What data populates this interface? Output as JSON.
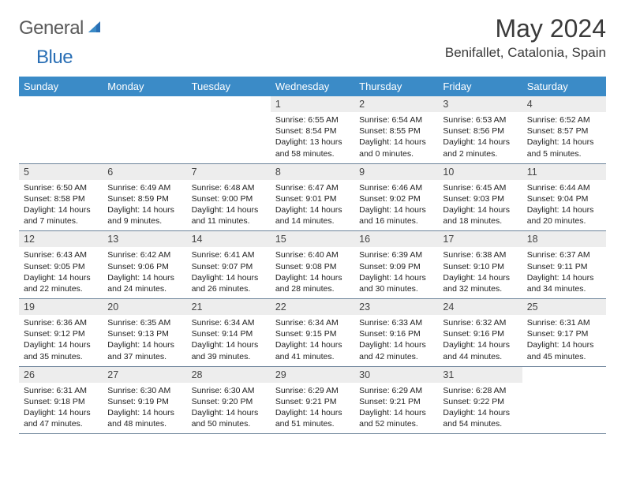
{
  "logo": {
    "general": "General",
    "blue": "Blue"
  },
  "title": "May 2024",
  "location": "Benifallet, Catalonia, Spain",
  "colors": {
    "header_bg": "#3b8bc7",
    "header_text": "#ffffff",
    "daynum_bg": "#ededed",
    "row_border": "#6b8299",
    "logo_gray": "#5a5a5a",
    "logo_blue": "#2a6fb5"
  },
  "dow": [
    "Sunday",
    "Monday",
    "Tuesday",
    "Wednesday",
    "Thursday",
    "Friday",
    "Saturday"
  ],
  "weeks": [
    [
      null,
      null,
      null,
      {
        "n": "1",
        "sr": "Sunrise: 6:55 AM",
        "ss": "Sunset: 8:54 PM",
        "dl": "Daylight: 13 hours and 58 minutes."
      },
      {
        "n": "2",
        "sr": "Sunrise: 6:54 AM",
        "ss": "Sunset: 8:55 PM",
        "dl": "Daylight: 14 hours and 0 minutes."
      },
      {
        "n": "3",
        "sr": "Sunrise: 6:53 AM",
        "ss": "Sunset: 8:56 PM",
        "dl": "Daylight: 14 hours and 2 minutes."
      },
      {
        "n": "4",
        "sr": "Sunrise: 6:52 AM",
        "ss": "Sunset: 8:57 PM",
        "dl": "Daylight: 14 hours and 5 minutes."
      }
    ],
    [
      {
        "n": "5",
        "sr": "Sunrise: 6:50 AM",
        "ss": "Sunset: 8:58 PM",
        "dl": "Daylight: 14 hours and 7 minutes."
      },
      {
        "n": "6",
        "sr": "Sunrise: 6:49 AM",
        "ss": "Sunset: 8:59 PM",
        "dl": "Daylight: 14 hours and 9 minutes."
      },
      {
        "n": "7",
        "sr": "Sunrise: 6:48 AM",
        "ss": "Sunset: 9:00 PM",
        "dl": "Daylight: 14 hours and 11 minutes."
      },
      {
        "n": "8",
        "sr": "Sunrise: 6:47 AM",
        "ss": "Sunset: 9:01 PM",
        "dl": "Daylight: 14 hours and 14 minutes."
      },
      {
        "n": "9",
        "sr": "Sunrise: 6:46 AM",
        "ss": "Sunset: 9:02 PM",
        "dl": "Daylight: 14 hours and 16 minutes."
      },
      {
        "n": "10",
        "sr": "Sunrise: 6:45 AM",
        "ss": "Sunset: 9:03 PM",
        "dl": "Daylight: 14 hours and 18 minutes."
      },
      {
        "n": "11",
        "sr": "Sunrise: 6:44 AM",
        "ss": "Sunset: 9:04 PM",
        "dl": "Daylight: 14 hours and 20 minutes."
      }
    ],
    [
      {
        "n": "12",
        "sr": "Sunrise: 6:43 AM",
        "ss": "Sunset: 9:05 PM",
        "dl": "Daylight: 14 hours and 22 minutes."
      },
      {
        "n": "13",
        "sr": "Sunrise: 6:42 AM",
        "ss": "Sunset: 9:06 PM",
        "dl": "Daylight: 14 hours and 24 minutes."
      },
      {
        "n": "14",
        "sr": "Sunrise: 6:41 AM",
        "ss": "Sunset: 9:07 PM",
        "dl": "Daylight: 14 hours and 26 minutes."
      },
      {
        "n": "15",
        "sr": "Sunrise: 6:40 AM",
        "ss": "Sunset: 9:08 PM",
        "dl": "Daylight: 14 hours and 28 minutes."
      },
      {
        "n": "16",
        "sr": "Sunrise: 6:39 AM",
        "ss": "Sunset: 9:09 PM",
        "dl": "Daylight: 14 hours and 30 minutes."
      },
      {
        "n": "17",
        "sr": "Sunrise: 6:38 AM",
        "ss": "Sunset: 9:10 PM",
        "dl": "Daylight: 14 hours and 32 minutes."
      },
      {
        "n": "18",
        "sr": "Sunrise: 6:37 AM",
        "ss": "Sunset: 9:11 PM",
        "dl": "Daylight: 14 hours and 34 minutes."
      }
    ],
    [
      {
        "n": "19",
        "sr": "Sunrise: 6:36 AM",
        "ss": "Sunset: 9:12 PM",
        "dl": "Daylight: 14 hours and 35 minutes."
      },
      {
        "n": "20",
        "sr": "Sunrise: 6:35 AM",
        "ss": "Sunset: 9:13 PM",
        "dl": "Daylight: 14 hours and 37 minutes."
      },
      {
        "n": "21",
        "sr": "Sunrise: 6:34 AM",
        "ss": "Sunset: 9:14 PM",
        "dl": "Daylight: 14 hours and 39 minutes."
      },
      {
        "n": "22",
        "sr": "Sunrise: 6:34 AM",
        "ss": "Sunset: 9:15 PM",
        "dl": "Daylight: 14 hours and 41 minutes."
      },
      {
        "n": "23",
        "sr": "Sunrise: 6:33 AM",
        "ss": "Sunset: 9:16 PM",
        "dl": "Daylight: 14 hours and 42 minutes."
      },
      {
        "n": "24",
        "sr": "Sunrise: 6:32 AM",
        "ss": "Sunset: 9:16 PM",
        "dl": "Daylight: 14 hours and 44 minutes."
      },
      {
        "n": "25",
        "sr": "Sunrise: 6:31 AM",
        "ss": "Sunset: 9:17 PM",
        "dl": "Daylight: 14 hours and 45 minutes."
      }
    ],
    [
      {
        "n": "26",
        "sr": "Sunrise: 6:31 AM",
        "ss": "Sunset: 9:18 PM",
        "dl": "Daylight: 14 hours and 47 minutes."
      },
      {
        "n": "27",
        "sr": "Sunrise: 6:30 AM",
        "ss": "Sunset: 9:19 PM",
        "dl": "Daylight: 14 hours and 48 minutes."
      },
      {
        "n": "28",
        "sr": "Sunrise: 6:30 AM",
        "ss": "Sunset: 9:20 PM",
        "dl": "Daylight: 14 hours and 50 minutes."
      },
      {
        "n": "29",
        "sr": "Sunrise: 6:29 AM",
        "ss": "Sunset: 9:21 PM",
        "dl": "Daylight: 14 hours and 51 minutes."
      },
      {
        "n": "30",
        "sr": "Sunrise: 6:29 AM",
        "ss": "Sunset: 9:21 PM",
        "dl": "Daylight: 14 hours and 52 minutes."
      },
      {
        "n": "31",
        "sr": "Sunrise: 6:28 AM",
        "ss": "Sunset: 9:22 PM",
        "dl": "Daylight: 14 hours and 54 minutes."
      },
      null
    ]
  ]
}
